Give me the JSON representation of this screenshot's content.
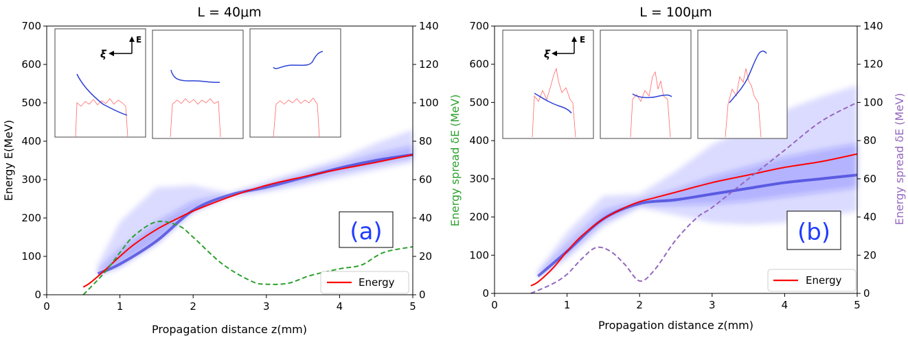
{
  "chart_data": [
    {
      "type": "line",
      "title": "L = 40μm",
      "xlabel": "Propagation distance z(mm)",
      "ylabel": "Energy E(MeV)",
      "y2label": "Energy spread δE (MeV)",
      "y2label_color": "#2ca02c",
      "xlim": [
        0,
        5
      ],
      "ylim": [
        0,
        700
      ],
      "y2lim": [
        0,
        140
      ],
      "xticks": [
        "0",
        "1",
        "2",
        "3",
        "4",
        "5"
      ],
      "yticks": [
        "0",
        "100",
        "200",
        "300",
        "400",
        "500",
        "600",
        "700"
      ],
      "y2ticks": [
        "0",
        "20",
        "40",
        "60",
        "80",
        "100",
        "120",
        "140"
      ],
      "panel_label": "(a)",
      "legend": [
        "Energy"
      ],
      "legend_position": "lower-right",
      "inset_axis_labels": {
        "xi": "ξ",
        "e": "E"
      },
      "series": [
        {
          "name": "Energy",
          "axis": "left",
          "color": "#ff0000",
          "style": "solid",
          "x": [
            0.5,
            0.6,
            0.8,
            1.0,
            1.2,
            1.5,
            1.8,
            2.0,
            2.5,
            3.0,
            3.5,
            4.0,
            4.5,
            5.0
          ],
          "y": [
            20,
            32,
            65,
            100,
            132,
            170,
            200,
            218,
            255,
            285,
            307,
            327,
            345,
            365
          ]
        },
        {
          "axis": "right",
          "color": "#2ca02c",
          "style": "dashed",
          "x": [
            0.5,
            0.8,
            1.0,
            1.2,
            1.5,
            1.8,
            2.0,
            2.4,
            2.8,
            3.0,
            3.3,
            3.6,
            4.0,
            4.3,
            4.6,
            5.0
          ],
          "y": [
            0,
            12,
            22,
            31,
            38,
            36,
            30,
            16,
            7,
            5.5,
            6,
            10,
            13.5,
            15.5,
            22,
            25
          ]
        }
      ],
      "band": {
        "axis": "left",
        "color": "#1a1aff",
        "x": [
          0.7,
          1.0,
          1.5,
          2.0,
          2.5,
          3.0,
          3.5,
          4.0,
          4.5,
          5.0
        ],
        "upper": [
          80,
          190,
          280,
          285,
          265,
          295,
          325,
          355,
          395,
          430
        ],
        "lower": [
          50,
          70,
          130,
          215,
          255,
          268,
          285,
          305,
          325,
          345
        ],
        "core": [
          55,
          80,
          140,
          220,
          260,
          280,
          305,
          330,
          350,
          365
        ]
      }
    },
    {
      "type": "line",
      "title": "L = 100μm",
      "xlabel": "Propagation distance z(mm)",
      "ylabel": "",
      "y2label": "Energy spread δE (MeV)",
      "y2label_color": "#9467bd",
      "xlim": [
        0,
        5
      ],
      "ylim": [
        0,
        700
      ],
      "y2lim": [
        0,
        140
      ],
      "xticks": [
        "0",
        "1",
        "2",
        "3",
        "4",
        "5"
      ],
      "yticks": [
        "0",
        "100",
        "200",
        "300",
        "400",
        "500",
        "600",
        "700"
      ],
      "y2ticks": [
        "0",
        "20",
        "40",
        "60",
        "80",
        "100",
        "120",
        "140"
      ],
      "panel_label": "(b)",
      "legend": [
        "Energy"
      ],
      "legend_position": "lower-right",
      "inset_axis_labels": {
        "xi": "ξ",
        "e": "E"
      },
      "series": [
        {
          "name": "Energy",
          "axis": "left",
          "color": "#ff0000",
          "style": "solid",
          "x": [
            0.5,
            0.6,
            0.8,
            1.0,
            1.2,
            1.5,
            1.8,
            2.0,
            2.2,
            2.5,
            3.0,
            3.5,
            4.0,
            4.5,
            5.0
          ],
          "y": [
            20,
            30,
            65,
            110,
            150,
            195,
            225,
            240,
            250,
            265,
            290,
            310,
            330,
            345,
            365
          ]
        },
        {
          "axis": "right",
          "color": "#9467bd",
          "style": "dashed",
          "x": [
            0.5,
            0.8,
            1.0,
            1.2,
            1.4,
            1.6,
            1.8,
            2.0,
            2.2,
            2.5,
            2.8,
            3.0,
            3.5,
            4.0,
            4.5,
            5.0
          ],
          "y": [
            0,
            5,
            10,
            18,
            24,
            22,
            15,
            6.5,
            12,
            28,
            40,
            45,
            60,
            75,
            90,
            100
          ]
        }
      ],
      "band": {
        "axis": "left",
        "color": "#1a1aff",
        "x": [
          0.6,
          1.0,
          1.5,
          2.0,
          2.5,
          3.0,
          3.5,
          4.0,
          4.5,
          5.0
        ],
        "upper": [
          60,
          160,
          255,
          260,
          320,
          390,
          435,
          480,
          515,
          545
        ],
        "lower": [
          40,
          90,
          175,
          225,
          205,
          185,
          180,
          185,
          200,
          215
        ],
        "core": [
          45,
          110,
          195,
          235,
          245,
          260,
          275,
          290,
          300,
          310
        ]
      }
    }
  ]
}
